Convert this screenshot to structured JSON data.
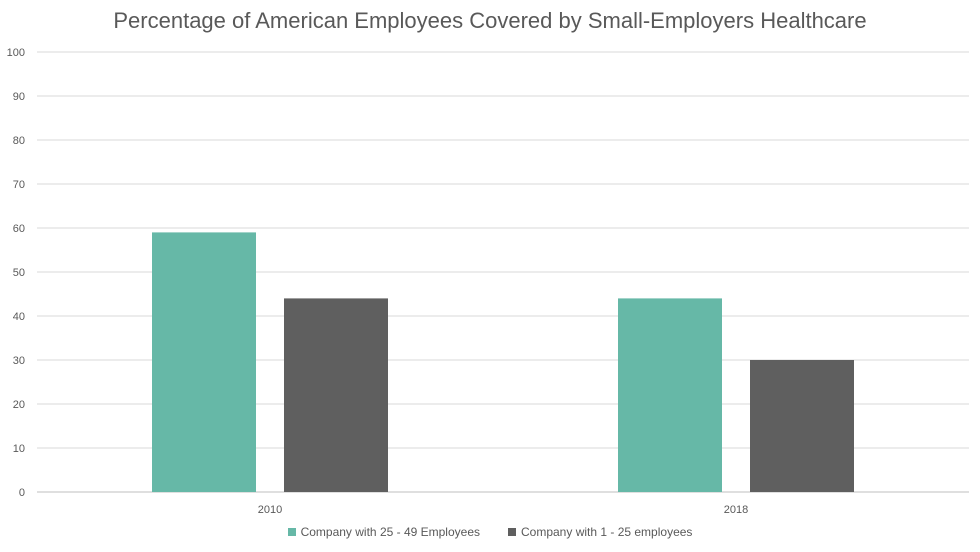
{
  "chart_data": {
    "type": "bar",
    "title": "Percentage of American Employees Covered by Small-Employers Healthcare",
    "categories": [
      "2010",
      "2018"
    ],
    "series": [
      {
        "name": "Company with 25 - 49 Employees",
        "values": [
          59,
          44
        ],
        "color": "#66b8a7"
      },
      {
        "name": "Company with 1 - 25 employees",
        "values": [
          44,
          30
        ],
        "color": "#5f5f5f"
      }
    ],
    "ylim": [
      0,
      100
    ],
    "yticks": [
      0,
      10,
      20,
      30,
      40,
      50,
      60,
      70,
      80,
      90,
      100
    ],
    "grid": true,
    "legend_position": "bottom"
  }
}
